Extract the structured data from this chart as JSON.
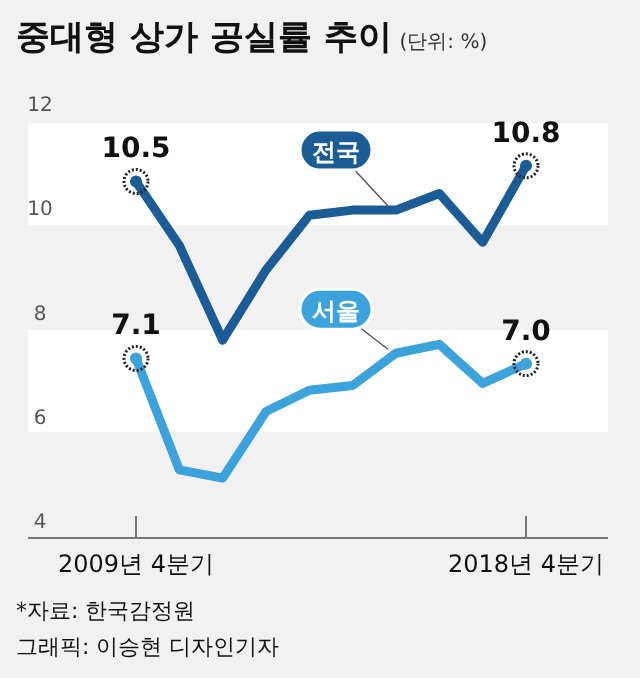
{
  "chart_data": {
    "type": "line",
    "title": "중대형 상가 공실률 추이",
    "subtitle": "(단위: %)",
    "categories": [
      "2009년 4분기",
      null,
      null,
      null,
      null,
      null,
      null,
      null,
      null,
      "2018년 4분기"
    ],
    "series": [
      {
        "name": "전국",
        "color": "#1b5b96",
        "values": [
          10.5,
          9.27,
          7.45,
          8.8,
          9.85,
          9.95,
          9.95,
          10.27,
          9.33,
          10.8
        ],
        "value_labels": [
          "10.5",
          null,
          null,
          null,
          null,
          null,
          null,
          null,
          null,
          "10.8"
        ]
      },
      {
        "name": "서울",
        "color": "#3ba2dc",
        "values": [
          7.1,
          4.96,
          4.8,
          6.08,
          6.49,
          6.58,
          7.2,
          7.37,
          6.62,
          7.0
        ],
        "value_labels": [
          "7.1",
          null,
          null,
          null,
          null,
          null,
          null,
          null,
          null,
          "7.0"
        ]
      }
    ],
    "ylim": [
      3.65,
      12
    ],
    "yticks": [
      4,
      6,
      8,
      10,
      12
    ],
    "grid": false,
    "marker": "none",
    "line_style": "solid",
    "annotations": [
      "*자료: 한국감정원",
      "그래픽: 이승현 디자인기자"
    ]
  }
}
